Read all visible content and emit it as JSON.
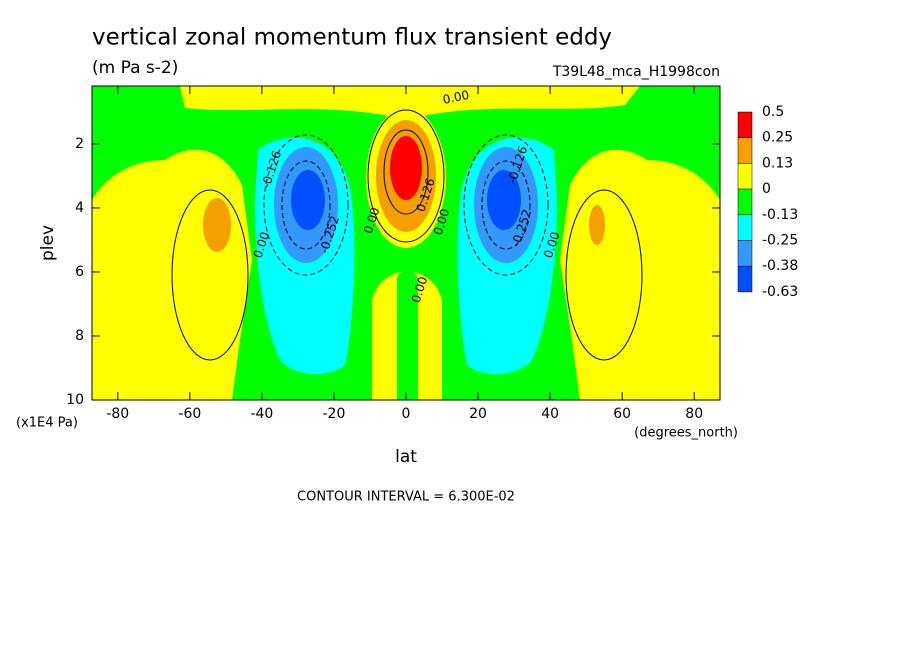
{
  "chart_data": {
    "type": "contour",
    "title": "vertical zonal momentum flux transient eddy",
    "subtitle": "(m Pa s-2)",
    "dataset": "T39L48_mca_H1998con",
    "x_label": "lat",
    "x_units": "(degrees_north)",
    "y_label": "plev",
    "y_units": "(x1E4 Pa)",
    "footnote": "CONTOUR INTERVAL = 6.300E-02",
    "xlim": [
      -87.16,
      87.16
    ],
    "xticks": [
      -80,
      -60,
      -40,
      -20,
      0,
      20,
      40,
      60,
      80
    ],
    "ylim": [
      10,
      0.19
    ],
    "yticks": [
      2,
      4,
      6,
      8,
      10
    ],
    "colorbar": {
      "levels": [
        0.5,
        0.25,
        0.13,
        0,
        -0.13,
        -0.25,
        -0.38,
        -0.63
      ],
      "colors": [
        "#ff0000",
        "#f5a000",
        "#ffff00",
        "#00ff00",
        "#00ffff",
        "#3399ff",
        "#0050ff"
      ]
    },
    "annotations": [
      {
        "text": "0.00",
        "x": 13.9,
        "y": 0.56
      },
      {
        "text": "-0.126",
        "x": -37.2,
        "y": 2.8
      },
      {
        "text": "-0.252",
        "x": -21.1,
        "y": 4.84
      },
      {
        "text": "0.00",
        "x": -40,
        "y": 5.16
      },
      {
        "text": "0.00",
        "x": -9.4,
        "y": 4.4
      },
      {
        "text": "0.126",
        "x": 5.6,
        "y": 3.6
      },
      {
        "text": "0.00",
        "x": 10,
        "y": 4.44
      },
      {
        "text": "-0.126",
        "x": 31.1,
        "y": 2.66
      },
      {
        "text": "-0.252",
        "x": 32.2,
        "y": 4.63
      },
      {
        "text": "0.00",
        "x": 40.6,
        "y": 5.16
      },
      {
        "text": "0.00",
        "x": 3.9,
        "y": 6.56
      }
    ]
  }
}
